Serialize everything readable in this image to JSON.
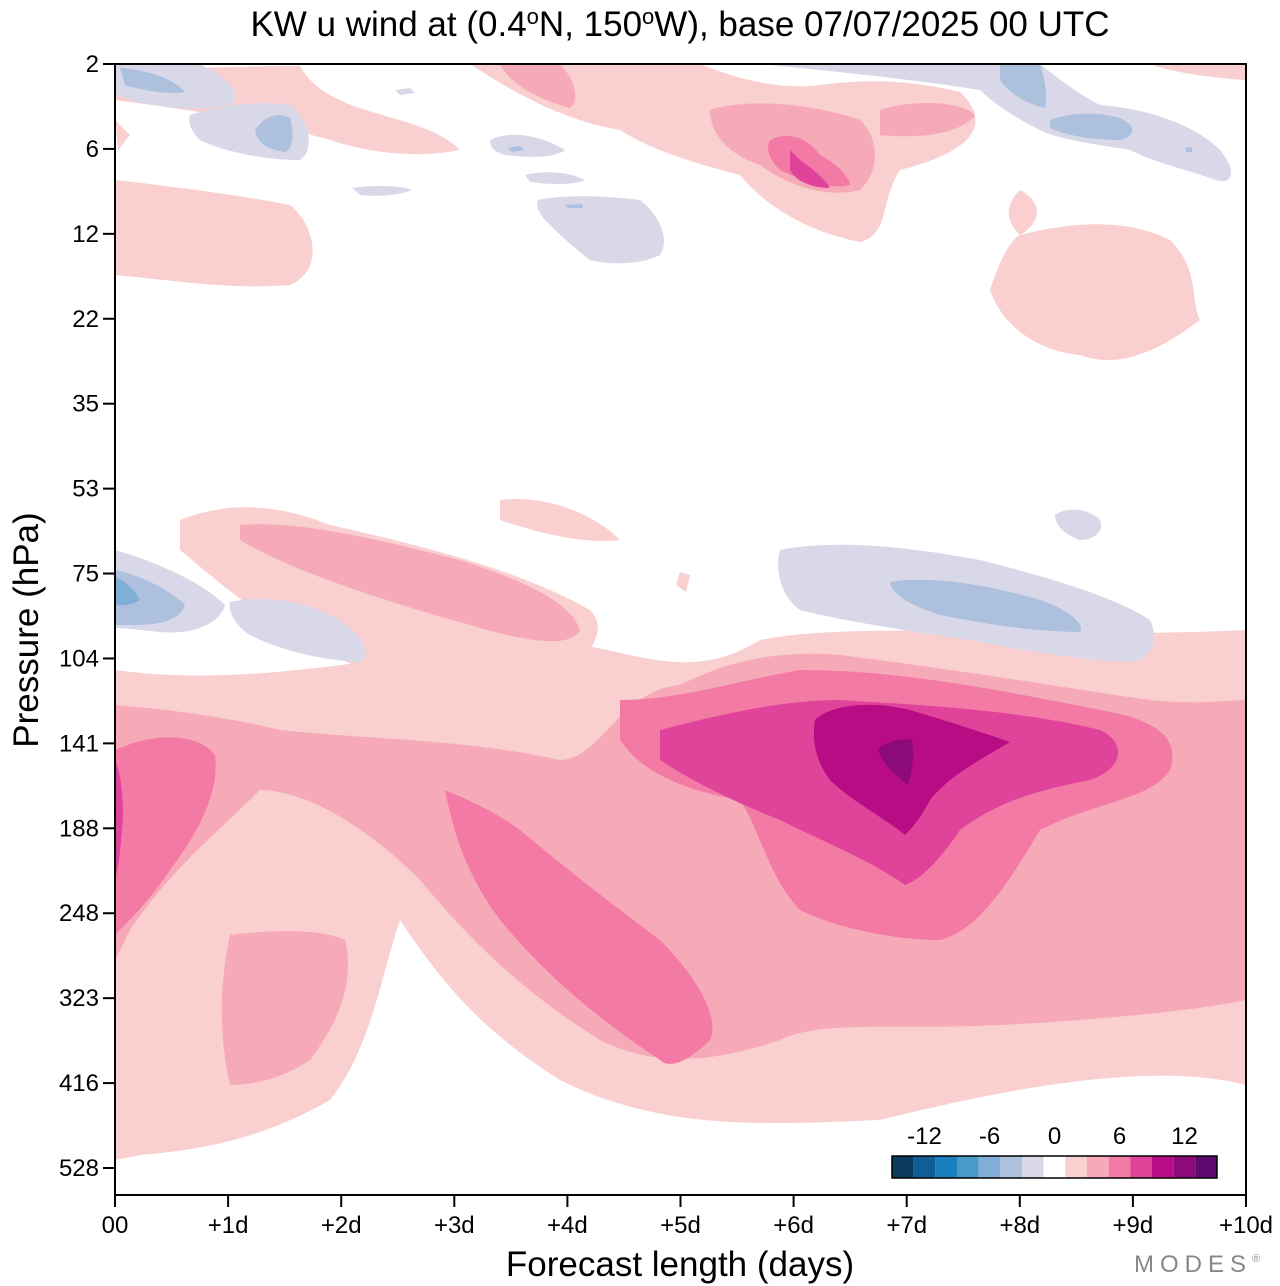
{
  "chart_data": {
    "type": "contour",
    "title_parts": [
      "KW u wind at (0.4",
      "o",
      "N, 150",
      "o",
      "W),  base 07/07/2025  00 UTC"
    ],
    "xlabel": "Forecast length (days)",
    "ylabel": "Pressure (hPa)",
    "x_tick_labels": [
      "00",
      "+1d",
      "+2d",
      "+3d",
      "+4d",
      "+5d",
      "+6d",
      "+7d",
      "+8d",
      "+9d",
      "+10d"
    ],
    "y_tick_labels": [
      "2",
      "6",
      "12",
      "22",
      "35",
      "53",
      "75",
      "104",
      "141",
      "188",
      "248",
      "323",
      "416",
      "528"
    ],
    "xlim_days": [
      0,
      10
    ],
    "ylim_hpa": [
      2,
      528
    ],
    "colorbar": {
      "labels": [
        "-12",
        "-6",
        "0",
        "6",
        "12"
      ],
      "label_values": [
        -12,
        -6,
        0,
        6,
        12
      ],
      "levels": [
        -15,
        -13,
        -11,
        -9,
        -7,
        -5,
        -3,
        -1,
        1,
        3,
        5,
        7,
        9,
        11,
        13,
        15
      ],
      "colors": [
        "#0b3c5d",
        "#0f5f94",
        "#1a7fbf",
        "#4a9ac8",
        "#7faed6",
        "#adc0de",
        "#d8d8e8",
        "#ffffff",
        "#f9cfd0",
        "#f6aab7",
        "#f47aa6",
        "#e0449a",
        "#b80c85",
        "#8c0a7a",
        "#5c0a6e"
      ]
    },
    "features": [
      {
        "name": "max positive core",
        "day": 7.0,
        "pressure_hpa": 141,
        "value_approx": 14
      },
      {
        "name": "lower-stratosphere easterly band",
        "day": 8.0,
        "pressure_hpa": 85,
        "value_approx": -6
      },
      {
        "name": "near-surface-left negative core",
        "day": 0.1,
        "pressure_hpa": 82,
        "value_approx": -8
      },
      {
        "name": "upper-level positive blob",
        "day": 6.2,
        "pressure_hpa": 7,
        "value_approx": 8
      }
    ]
  },
  "branding": {
    "logo_text": "MODES",
    "registered_mark": "®"
  }
}
